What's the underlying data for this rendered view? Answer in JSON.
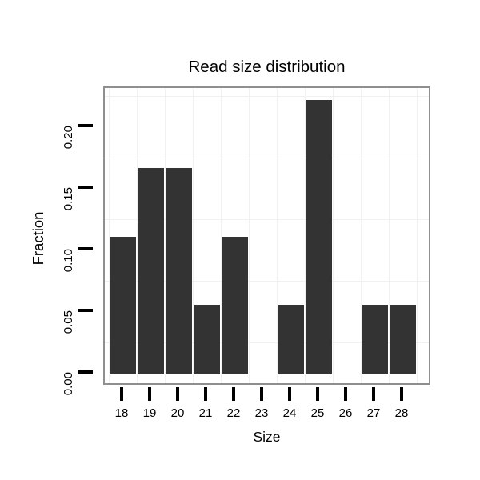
{
  "chart_data": {
    "type": "bar",
    "title": "Read size distribution",
    "xlabel": "Size",
    "ylabel": "Fraction",
    "categories": [
      "18",
      "19",
      "20",
      "21",
      "22",
      "23",
      "24",
      "25",
      "26",
      "27",
      "28"
    ],
    "values": [
      0.1111,
      0.1667,
      0.1667,
      0.0556,
      0.1111,
      0,
      0.0556,
      0.2222,
      0,
      0.0556,
      0.0556
    ],
    "yticks": {
      "values": [
        0,
        0.05,
        0.1,
        0.15,
        0.2
      ],
      "labels": [
        "0.00",
        "0.05",
        "0.10",
        "0.15",
        "0.20"
      ]
    },
    "ylim": [
      -0.0111,
      0.2333
    ],
    "grid": {
      "horizontal_minor": [
        0.025,
        0.075,
        0.125,
        0.175,
        0.225
      ],
      "vertical_minor_between_categories": true
    },
    "legend": "none",
    "colors": {
      "bar": "#333333",
      "panel_border": "#8f8f8f",
      "grid": "#f1f1f1",
      "tick": "#000000",
      "text": "#000000",
      "background": "#ffffff"
    }
  }
}
